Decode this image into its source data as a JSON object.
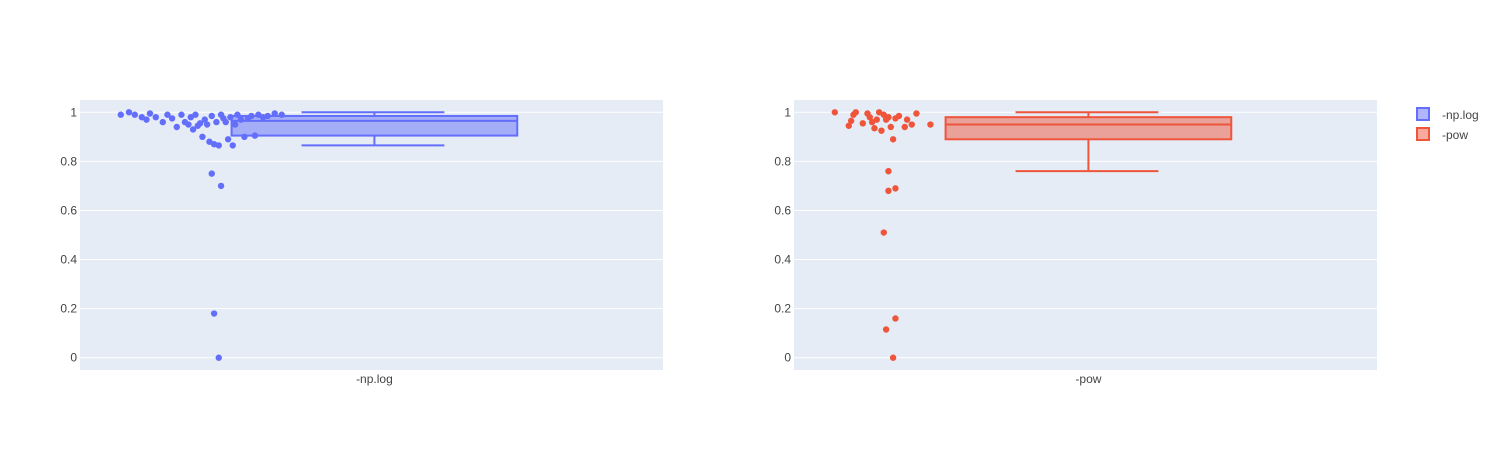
{
  "colors": {
    "plot_bg": "#e5ecf6",
    "grid": "#ffffff",
    "text": "#444444"
  },
  "legend": {
    "placement": "top-right",
    "items": [
      {
        "label": "-np.log",
        "color": "#636efa"
      },
      {
        "label": "-pow",
        "color": "#ef553b"
      }
    ]
  },
  "chart_data": [
    {
      "type": "box",
      "name": "-np.log",
      "color": "#636efa",
      "category": "-np.log",
      "ylim": [
        -0.05,
        1.05
      ],
      "yticks": [
        0,
        0.2,
        0.4,
        0.6,
        0.8,
        1
      ],
      "ytick_labels": [
        "0",
        "0.2",
        "0.4",
        "0.6",
        "0.8",
        "1"
      ],
      "grid": true,
      "box": {
        "lower_fence": 0.865,
        "q1": 0.905,
        "median": 0.965,
        "q3": 0.985,
        "upper_fence": 1.0
      },
      "points": [
        {
          "j": 0.0,
          "y": 0.99
        },
        {
          "j": 0.07,
          "y": 1.0
        },
        {
          "j": 0.12,
          "y": 0.99
        },
        {
          "j": 0.18,
          "y": 0.98
        },
        {
          "j": 0.22,
          "y": 0.97
        },
        {
          "j": 0.25,
          "y": 0.995
        },
        {
          "j": 0.3,
          "y": 0.98
        },
        {
          "j": 0.36,
          "y": 0.96
        },
        {
          "j": 0.4,
          "y": 0.99
        },
        {
          "j": 0.44,
          "y": 0.975
        },
        {
          "j": 0.48,
          "y": 0.94
        },
        {
          "j": 0.52,
          "y": 0.99
        },
        {
          "j": 0.55,
          "y": 0.96
        },
        {
          "j": 0.58,
          "y": 0.95
        },
        {
          "j": 0.6,
          "y": 0.98
        },
        {
          "j": 0.62,
          "y": 0.93
        },
        {
          "j": 0.64,
          "y": 0.99
        },
        {
          "j": 0.66,
          "y": 0.945
        },
        {
          "j": 0.68,
          "y": 0.955
        },
        {
          "j": 0.7,
          "y": 0.9
        },
        {
          "j": 0.72,
          "y": 0.97
        },
        {
          "j": 0.74,
          "y": 0.95
        },
        {
          "j": 0.76,
          "y": 0.88
        },
        {
          "j": 0.78,
          "y": 0.985
        },
        {
          "j": 0.8,
          "y": 0.87
        },
        {
          "j": 0.82,
          "y": 0.96
        },
        {
          "j": 0.84,
          "y": 0.865
        },
        {
          "j": 0.86,
          "y": 0.99
        },
        {
          "j": 0.88,
          "y": 0.975
        },
        {
          "j": 0.9,
          "y": 0.96
        },
        {
          "j": 0.92,
          "y": 0.89
        },
        {
          "j": 0.94,
          "y": 0.98
        },
        {
          "j": 0.96,
          "y": 0.865
        },
        {
          "j": 0.98,
          "y": 0.95
        },
        {
          "j": 1.0,
          "y": 0.99
        },
        {
          "j": 1.03,
          "y": 0.97
        },
        {
          "j": 1.06,
          "y": 0.9
        },
        {
          "j": 1.09,
          "y": 0.975
        },
        {
          "j": 1.12,
          "y": 0.985
        },
        {
          "j": 1.15,
          "y": 0.905
        },
        {
          "j": 1.18,
          "y": 0.99
        },
        {
          "j": 1.22,
          "y": 0.98
        },
        {
          "j": 1.26,
          "y": 0.985
        },
        {
          "j": 1.32,
          "y": 0.995
        },
        {
          "j": 1.38,
          "y": 0.99
        },
        {
          "j": 0.78,
          "y": 0.75
        },
        {
          "j": 0.86,
          "y": 0.7
        },
        {
          "j": 0.8,
          "y": 0.18
        },
        {
          "j": 0.84,
          "y": 0.0
        }
      ]
    },
    {
      "type": "box",
      "name": "-pow",
      "color": "#ef553b",
      "category": "-pow",
      "ylim": [
        -0.05,
        1.05
      ],
      "yticks": [
        0,
        0.2,
        0.4,
        0.6,
        0.8,
        1
      ],
      "ytick_labels": [
        "0",
        "0.2",
        "0.4",
        "0.6",
        "0.8",
        "1"
      ],
      "grid": true,
      "box": {
        "lower_fence": 0.76,
        "q1": 0.89,
        "median": 0.95,
        "q3": 0.98,
        "upper_fence": 1.0
      },
      "points": [
        {
          "j": 0.0,
          "y": 1.0
        },
        {
          "j": 0.12,
          "y": 0.945
        },
        {
          "j": 0.14,
          "y": 0.965
        },
        {
          "j": 0.16,
          "y": 0.99
        },
        {
          "j": 0.18,
          "y": 1.0
        },
        {
          "j": 0.24,
          "y": 0.955
        },
        {
          "j": 0.28,
          "y": 0.995
        },
        {
          "j": 0.3,
          "y": 0.98
        },
        {
          "j": 0.32,
          "y": 0.96
        },
        {
          "j": 0.34,
          "y": 0.935
        },
        {
          "j": 0.36,
          "y": 0.97
        },
        {
          "j": 0.38,
          "y": 1.0
        },
        {
          "j": 0.4,
          "y": 0.925
        },
        {
          "j": 0.42,
          "y": 0.99
        },
        {
          "j": 0.44,
          "y": 0.97
        },
        {
          "j": 0.46,
          "y": 0.98
        },
        {
          "j": 0.48,
          "y": 0.94
        },
        {
          "j": 0.5,
          "y": 0.89
        },
        {
          "j": 0.52,
          "y": 0.975
        },
        {
          "j": 0.55,
          "y": 0.985
        },
        {
          "j": 0.6,
          "y": 0.94
        },
        {
          "j": 0.62,
          "y": 0.97
        },
        {
          "j": 0.66,
          "y": 0.95
        },
        {
          "j": 0.7,
          "y": 0.995
        },
        {
          "j": 0.82,
          "y": 0.95
        },
        {
          "j": 0.46,
          "y": 0.76
        },
        {
          "j": 0.52,
          "y": 0.69
        },
        {
          "j": 0.46,
          "y": 0.68
        },
        {
          "j": 0.42,
          "y": 0.51
        },
        {
          "j": 0.52,
          "y": 0.16
        },
        {
          "j": 0.44,
          "y": 0.115
        },
        {
          "j": 0.5,
          "y": 0.0
        }
      ]
    }
  ]
}
